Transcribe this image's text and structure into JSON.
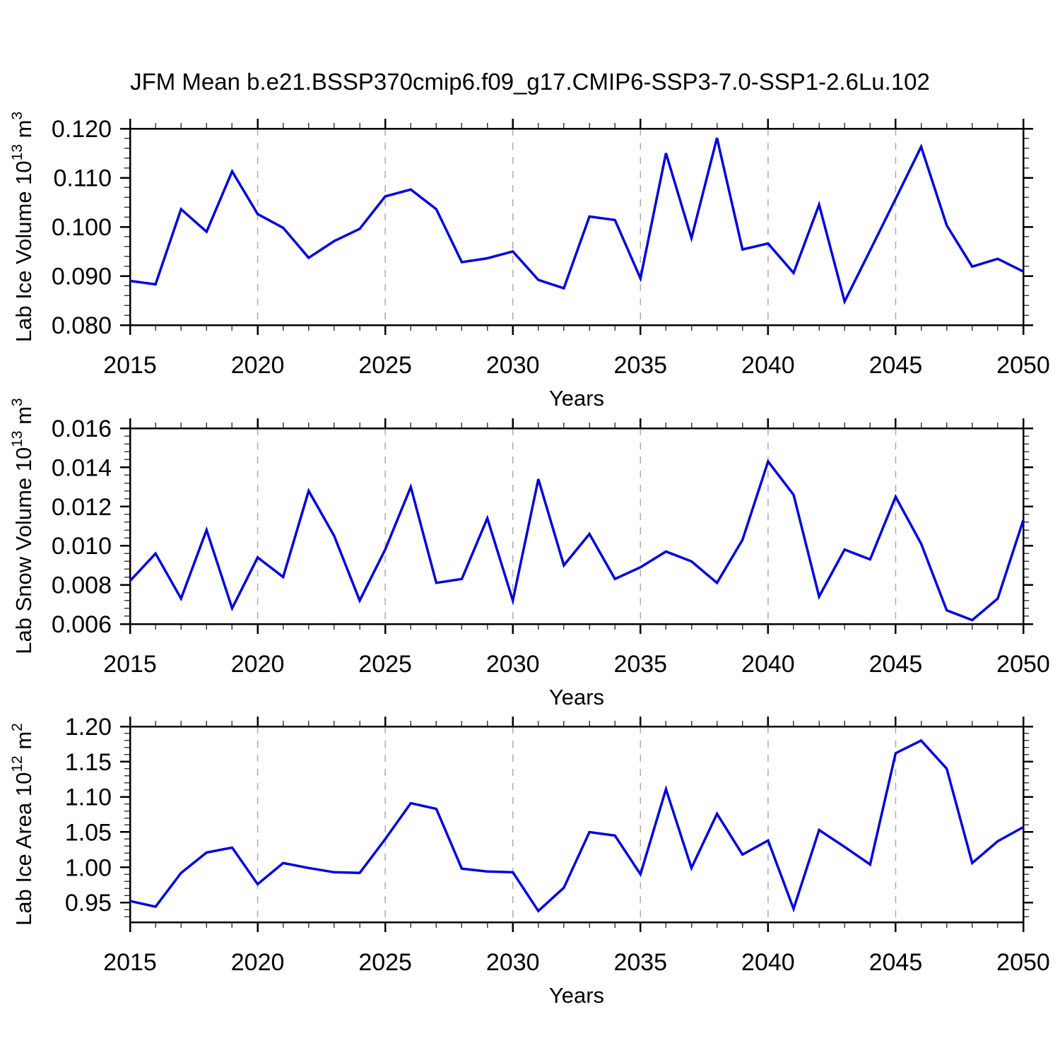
{
  "title": "JFM Mean b.e21.BSSP370cmip6.f09_g17.CMIP6-SSP3-7.0-SSP1-2.6Lu.102",
  "styles": {
    "background": "#ffffff",
    "line_color": "#0000dd",
    "axis_color": "#000000",
    "minor_tick_color": "#3c3c3c",
    "grid_color": "#ababab",
    "text_color": "#000000"
  },
  "x_axis": {
    "label": "Years",
    "min": 2015,
    "max": 2050,
    "major_ticks": [
      2015,
      2020,
      2025,
      2030,
      2035,
      2040,
      2045,
      2050
    ],
    "major_tick_labels": [
      "2015",
      "2020",
      "2025",
      "2030",
      "2035",
      "2040",
      "2045",
      "2050"
    ],
    "minor_step": 1,
    "grid_lines": [
      2020,
      2025,
      2030,
      2035,
      2040,
      2045
    ]
  },
  "years": [
    2015,
    2016,
    2017,
    2018,
    2019,
    2020,
    2021,
    2022,
    2023,
    2024,
    2025,
    2026,
    2027,
    2028,
    2029,
    2030,
    2031,
    2032,
    2033,
    2034,
    2035,
    2036,
    2037,
    2038,
    2039,
    2040,
    2041,
    2042,
    2043,
    2044,
    2045,
    2046,
    2047,
    2048,
    2049,
    2050
  ],
  "chart_data": [
    {
      "type": "line",
      "id": "lab-ice-volume",
      "ylabel": "Lab Ice Volume 10^13 m^3",
      "ylabel_segments": [
        {
          "t": "Lab Ice Volume 10"
        },
        {
          "t": "13",
          "sup": true
        },
        {
          "t": " m"
        },
        {
          "t": "3",
          "sup": true
        }
      ],
      "xlabel": "Years",
      "ymax": 0.12,
      "ymin_frame": 0.08,
      "yticks": [
        {
          "v": 0.12,
          "label": "0.120"
        },
        {
          "v": 0.11,
          "label": "0.110"
        },
        {
          "v": 0.1,
          "label": "0.100"
        },
        {
          "v": 0.09,
          "label": "0.090"
        },
        {
          "v": 0.08,
          "label": "0.080"
        }
      ],
      "y_minor_step": 0.002,
      "values": [
        0.089,
        0.0883,
        0.1036,
        0.099,
        0.1113,
        0.1026,
        0.0998,
        0.0937,
        0.0971,
        0.0996,
        0.1062,
        0.1076,
        0.1036,
        0.0928,
        0.0936,
        0.095,
        0.0892,
        0.0875,
        0.1021,
        0.1014,
        0.0895,
        0.115,
        0.0977,
        0.1181,
        0.0954,
        0.0966,
        0.0906,
        0.1045,
        0.0848,
        0.0952,
        0.1057,
        0.1163,
        0.1003,
        0.0919,
        0.0935,
        0.0909
      ]
    },
    {
      "type": "line",
      "id": "lab-snow-volume",
      "ylabel": "Lab Snow Volume 10^13 m^3",
      "ylabel_segments": [
        {
          "t": "Lab Snow Volume 10"
        },
        {
          "t": "13",
          "sup": true
        },
        {
          "t": " m"
        },
        {
          "t": "3",
          "sup": true
        }
      ],
      "xlabel": "Years",
      "ymax": 0.016,
      "ymin_frame": 0.006,
      "yticks": [
        {
          "v": 0.016,
          "label": "0.016"
        },
        {
          "v": 0.014,
          "label": "0.014"
        },
        {
          "v": 0.012,
          "label": "0.012"
        },
        {
          "v": 0.01,
          "label": "0.010"
        },
        {
          "v": 0.008,
          "label": "0.008"
        },
        {
          "v": 0.006,
          "label": "0.006"
        }
      ],
      "y_minor_step": 0.0004,
      "values": [
        0.0082,
        0.0096,
        0.0073,
        0.0108,
        0.0068,
        0.0094,
        0.0084,
        0.0128,
        0.0105,
        0.0072,
        0.0098,
        0.013,
        0.0081,
        0.0083,
        0.0114,
        0.0072,
        0.0134,
        0.009,
        0.0106,
        0.0083,
        0.0089,
        0.0097,
        0.0092,
        0.0081,
        0.0103,
        0.0143,
        0.0126,
        0.0074,
        0.0098,
        0.0093,
        0.0125,
        0.0101,
        0.0067,
        0.0062,
        0.0073,
        0.0113
      ]
    },
    {
      "type": "line",
      "id": "lab-ice-area",
      "ylabel": "Lab Ice Area 10^12 m^2",
      "ylabel_segments": [
        {
          "t": "Lab Ice Area 10"
        },
        {
          "t": "12",
          "sup": true
        },
        {
          "t": " m"
        },
        {
          "t": "2",
          "sup": true
        }
      ],
      "xlabel": "Years",
      "ymax": 1.2,
      "ymin_frame": 0.922,
      "yticks": [
        {
          "v": 1.2,
          "label": "1.20"
        },
        {
          "v": 1.15,
          "label": "1.15"
        },
        {
          "v": 1.1,
          "label": "1.10"
        },
        {
          "v": 1.05,
          "label": "1.05"
        },
        {
          "v": 1.0,
          "label": "1.00"
        },
        {
          "v": 0.95,
          "label": "0.95"
        }
      ],
      "y_minor_step": 0.01,
      "values": [
        0.952,
        0.944,
        0.992,
        1.021,
        1.028,
        0.976,
        1.006,
        0.999,
        0.993,
        0.992,
        1.04,
        1.091,
        1.083,
        0.998,
        0.994,
        0.993,
        0.938,
        0.971,
        1.05,
        1.045,
        0.99,
        1.111,
        0.999,
        1.076,
        1.018,
        1.038,
        0.941,
        1.053,
        1.029,
        1.004,
        1.162,
        1.18,
        1.14,
        1.006,
        1.037,
        1.057
      ]
    }
  ]
}
